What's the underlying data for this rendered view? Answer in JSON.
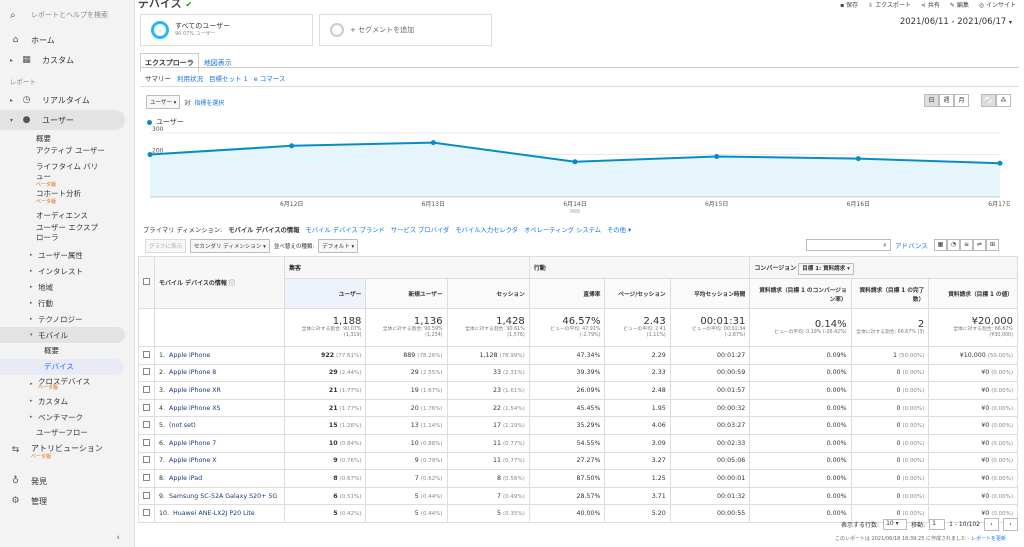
{
  "sidebar": {
    "search_placeholder": "レポートとヘルプを検索",
    "home": "ホーム",
    "custom": "カスタム",
    "reports_section": "レポート",
    "realtime": "リアルタイム",
    "users": "ユーザー",
    "users_sub": [
      "概要",
      "アクティブ ユーザー",
      "ライフタイム バリュー",
      "コホート分析",
      "オーディエンス",
      "ユーザー エクスプローラ"
    ],
    "beta": "ベータ版",
    "groups": [
      "ユーザー属性",
      "インタレスト",
      "地域",
      "行動",
      "テクノロジー"
    ],
    "mobile": "モバイル",
    "mobile_sub": [
      "概要",
      "デバイス"
    ],
    "after_groups": [
      "クロスデバイス",
      "カスタム",
      "ベンチマーク"
    ],
    "userflow": "ユーザーフロー",
    "attribution": "アトリビューション",
    "discover": "発見",
    "admin": "管理"
  },
  "top": {
    "title": "デバイス",
    "save": "保存",
    "export": "エクスポート",
    "share": "共有",
    "edit": "編集",
    "insight": "インサイト"
  },
  "segments": {
    "all_users": "すべてのユーザー",
    "all_users_sub": "90.07% ユーザー",
    "add": "+ セグメントを追加"
  },
  "daterange": "2021/06/11 - 2021/06/17",
  "tabs": {
    "explorer": "エクスプローラ",
    "map": "地図表示"
  },
  "subtabs": [
    "サマリー",
    "利用状況",
    "目標セット 1",
    "e コマース"
  ],
  "metric": {
    "select": "ユーザー",
    "vs": "対",
    "choose": "指標を選択",
    "period": [
      "日",
      "週",
      "月"
    ]
  },
  "chart_data": {
    "type": "line",
    "series": [
      {
        "name": "ユーザー",
        "values": [
          199,
          240,
          255,
          165,
          190,
          180,
          158
        ]
      }
    ],
    "x": [
      "6月11日",
      "6月12日",
      "6月13日",
      "6月14日",
      "6月15日",
      "6月16日",
      "6月17日"
    ],
    "x_tick_labels": [
      "6月12日",
      "6月13日",
      "6月14日",
      "6月15日",
      "6月16日",
      "6月17日"
    ],
    "y_ticks": [
      100,
      200,
      300
    ],
    "ylim": [
      0,
      300
    ]
  },
  "dimensions": {
    "label": "プライマリ ディメンション:",
    "items": [
      "モバイル デバイスの情報",
      "モバイル デバイス ブランド",
      "サービス プロバイダ",
      "モバイル入力セレクタ",
      "オペレーティング システム",
      "その他"
    ]
  },
  "toolbar": {
    "plot": "グラフに表示",
    "secondary": "セカンダリ ディメンション",
    "sort": "並べ替えの種類:",
    "sort_val": "デフォルト",
    "advanced": "アドバンス"
  },
  "table": {
    "groups": {
      "acquisition": "集客",
      "behavior": "行動",
      "conversion": "コンバージョン",
      "goal": "目標 1: 資料請求"
    },
    "dim_header": "モバイル デバイスの情報",
    "columns": [
      "ユーザー",
      "新規ユーザー",
      "セッション",
      "直帰率",
      "ページ/セッション",
      "平均セッション時間",
      "資料請求（目標 1 のコンバージョン率）",
      "資料請求（目標 1 の完了数）",
      "資料請求（目標 1 の値）"
    ],
    "totals": [
      {
        "v": "1,188",
        "s": "全体に対する割合: 90.07% (1,319)"
      },
      {
        "v": "1,136",
        "s": "全体に対する割合: 90.59% (1,254)"
      },
      {
        "v": "1,428",
        "s": "全体に対する割合: 90.61% (1,576)"
      },
      {
        "v": "46.57%",
        "s": "ビューの平均: 47.91% (-2.79%)"
      },
      {
        "v": "2.43",
        "s": "ビューの平均: 2.41 (1.11%)"
      },
      {
        "v": "00:01:31",
        "s": "ビューの平均: 00:01:34 (-2.87%)"
      },
      {
        "v": "0.14%",
        "s": "ビューの平均: 0.19% (-26.42%)"
      },
      {
        "v": "2",
        "s": "全体に対する割合: 66.67% (3)"
      },
      {
        "v": "¥20,000",
        "s": "全体に対する割合: 66.67% (¥30,000)"
      }
    ],
    "rows": [
      {
        "n": "1.",
        "name": "Apple iPhone",
        "u": "922",
        "up": "(77.61%)",
        "nu": "889",
        "nup": "(78.26%)",
        "s": "1,128",
        "sp": "(78.99%)",
        "br": "47.34%",
        "pps": "2.29",
        "t": "00:01:27",
        "cr": "0.09%",
        "c": "1",
        "cp": "(50.00%)",
        "val": "¥10,000",
        "vp": "(50.00%)"
      },
      {
        "n": "2.",
        "name": "Apple iPhone 8",
        "u": "29",
        "up": "(2.44%)",
        "nu": "29",
        "nup": "(2.55%)",
        "s": "33",
        "sp": "(2.31%)",
        "br": "39.39%",
        "pps": "2.33",
        "t": "00:00:59",
        "cr": "0.00%",
        "c": "0",
        "cp": "(0.00%)",
        "val": "¥0",
        "vp": "(0.00%)"
      },
      {
        "n": "3.",
        "name": "Apple iPhone XR",
        "u": "21",
        "up": "(1.77%)",
        "nu": "19",
        "nup": "(1.67%)",
        "s": "23",
        "sp": "(1.61%)",
        "br": "26.09%",
        "pps": "2.48",
        "t": "00:01:57",
        "cr": "0.00%",
        "c": "0",
        "cp": "(0.00%)",
        "val": "¥0",
        "vp": "(0.00%)"
      },
      {
        "n": "4.",
        "name": "Apple iPhone XS",
        "u": "21",
        "up": "(1.77%)",
        "nu": "20",
        "nup": "(1.76%)",
        "s": "22",
        "sp": "(1.54%)",
        "br": "45.45%",
        "pps": "1.95",
        "t": "00:00:32",
        "cr": "0.00%",
        "c": "0",
        "cp": "(0.00%)",
        "val": "¥0",
        "vp": "(0.00%)"
      },
      {
        "n": "5.",
        "name": "(not set)",
        "u": "15",
        "up": "(1.26%)",
        "nu": "13",
        "nup": "(1.14%)",
        "s": "17",
        "sp": "(1.19%)",
        "br": "35.29%",
        "pps": "4.06",
        "t": "00:03:27",
        "cr": "0.00%",
        "c": "0",
        "cp": "(0.00%)",
        "val": "¥0",
        "vp": "(0.00%)"
      },
      {
        "n": "6.",
        "name": "Apple iPhone 7",
        "u": "10",
        "up": "(0.84%)",
        "nu": "10",
        "nup": "(0.88%)",
        "s": "11",
        "sp": "(0.77%)",
        "br": "54.55%",
        "pps": "3.09",
        "t": "00:02:33",
        "cr": "0.00%",
        "c": "0",
        "cp": "(0.00%)",
        "val": "¥0",
        "vp": "(0.00%)"
      },
      {
        "n": "7.",
        "name": "Apple iPhone X",
        "u": "9",
        "up": "(0.76%)",
        "nu": "9",
        "nup": "(0.79%)",
        "s": "11",
        "sp": "(0.77%)",
        "br": "27.27%",
        "pps": "3.27",
        "t": "00:05:06",
        "cr": "0.00%",
        "c": "0",
        "cp": "(0.00%)",
        "val": "¥0",
        "vp": "(0.00%)"
      },
      {
        "n": "8.",
        "name": "Apple iPad",
        "u": "8",
        "up": "(0.67%)",
        "nu": "7",
        "nup": "(0.62%)",
        "s": "8",
        "sp": "(0.56%)",
        "br": "87.50%",
        "pps": "1.25",
        "t": "00:00:01",
        "cr": "0.00%",
        "c": "0",
        "cp": "(0.00%)",
        "val": "¥0",
        "vp": "(0.00%)"
      },
      {
        "n": "9.",
        "name": "Samsung SC-52A Galaxy S20+ 5G",
        "u": "6",
        "up": "(0.51%)",
        "nu": "5",
        "nup": "(0.44%)",
        "s": "7",
        "sp": "(0.49%)",
        "br": "28.57%",
        "pps": "3.71",
        "t": "00:01:32",
        "cr": "0.00%",
        "c": "0",
        "cp": "(0.00%)",
        "val": "¥0",
        "vp": "(0.00%)"
      },
      {
        "n": "10.",
        "name": "Huawei ANE-LX2J P20 Lite",
        "u": "5",
        "up": "(0.42%)",
        "nu": "5",
        "nup": "(0.44%)",
        "s": "5",
        "sp": "(0.35%)",
        "br": "40.00%",
        "pps": "5.20",
        "t": "00:00:55",
        "cr": "0.00%",
        "c": "0",
        "cp": "(0.00%)",
        "val": "¥0",
        "vp": "(0.00%)"
      }
    ]
  },
  "pager": {
    "rows_label": "表示する行数:",
    "rows": "10",
    "goto": "移動:",
    "page": "1",
    "range": "1 - 10/102"
  },
  "footer": {
    "note": "このレポートは 2021/06/18 16:39:25 に作成されました - ",
    "refresh": "レポートを更新"
  }
}
